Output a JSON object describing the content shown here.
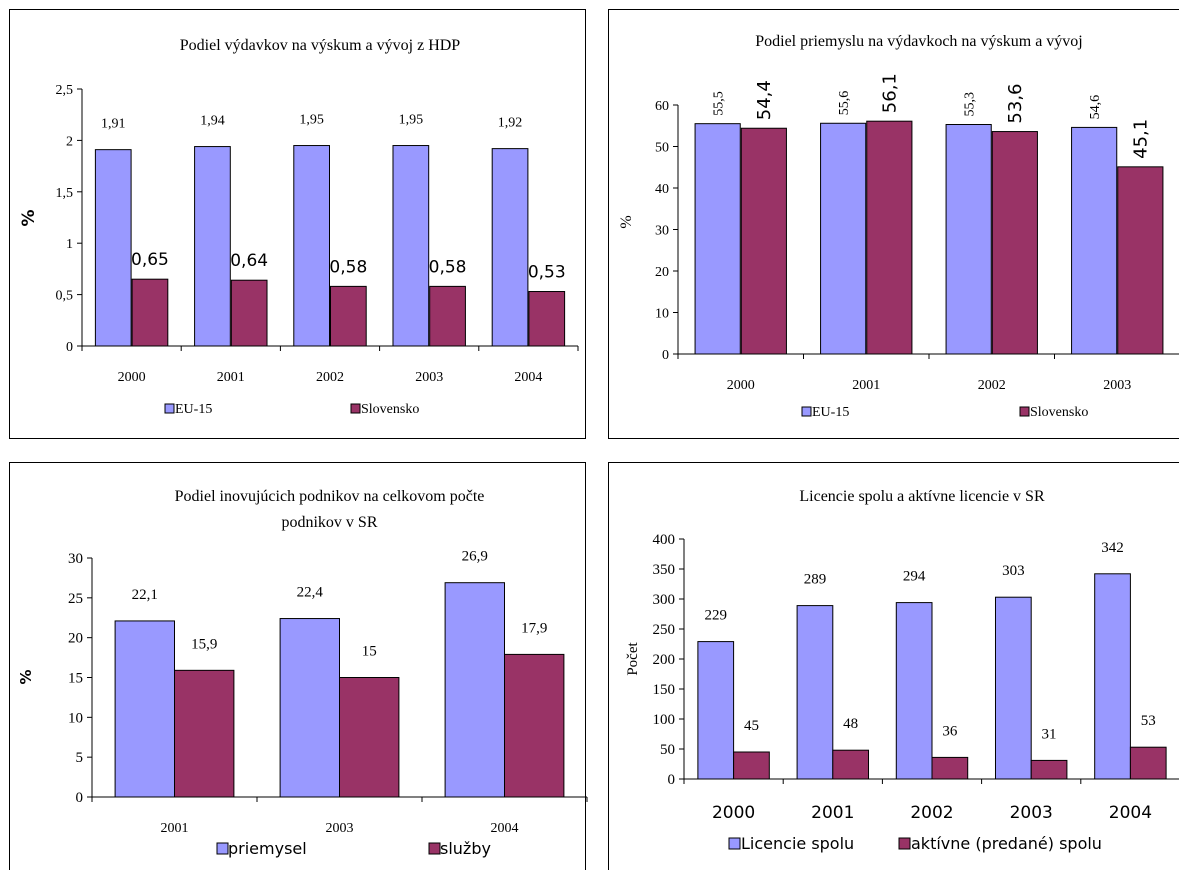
{
  "chart_data": [
    {
      "type": "bar",
      "title": "Podiel výdavkov na výskum a vývoj z HDP",
      "xlabel": "",
      "ylabel": "%",
      "ylim": [
        0,
        2.5
      ],
      "yticks": [
        "0",
        "0,5",
        "1",
        "1,5",
        "2",
        "2,5"
      ],
      "categories": [
        "2000",
        "2001",
        "2002",
        "2003",
        "2004"
      ],
      "series": [
        {
          "name": "EU-15",
          "color": "#9999ff",
          "values": [
            1.91,
            1.94,
            1.95,
            1.95,
            1.92
          ],
          "labels": [
            "1,91",
            "1,94",
            "1,95",
            "1,95",
            "1,92"
          ]
        },
        {
          "name": "Slovensko",
          "color": "#993366",
          "values": [
            0.65,
            0.64,
            0.58,
            0.58,
            0.53
          ],
          "labels": [
            "0,65",
            "0,64",
            "0,58",
            "0,58",
            "0,53"
          ]
        }
      ],
      "grid": false,
      "legend": "bottom"
    },
    {
      "type": "bar",
      "title": "Podiel priemyslu na výdavkoch na výskum a vývoj",
      "xlabel": "",
      "ylabel": "%",
      "ylim": [
        0,
        60
      ],
      "yticks": [
        "0",
        "10",
        "20",
        "30",
        "40",
        "50",
        "60"
      ],
      "categories": [
        "2000",
        "2001",
        "2002",
        "2003"
      ],
      "series": [
        {
          "name": "EU-15",
          "color": "#9999ff",
          "values": [
            55.5,
            55.6,
            55.3,
            54.6
          ],
          "labels": [
            "55,5",
            "55,6",
            "55,3",
            "54,6"
          ]
        },
        {
          "name": "Slovensko",
          "color": "#993366",
          "values": [
            54.4,
            56.1,
            53.6,
            45.1
          ],
          "labels": [
            "54,4",
            "56,1",
            "53,6",
            "45,1"
          ]
        }
      ],
      "grid": false,
      "legend": "bottom"
    },
    {
      "type": "bar",
      "title": "Podiel inovujúcich podnikov na celkovom počte podnikov v SR",
      "title_lines": [
        "Podiel inovujúcich podnikov na celkovom počte",
        "podnikov v SR"
      ],
      "xlabel": "",
      "ylabel": "%",
      "ylim": [
        0,
        30
      ],
      "yticks": [
        "0",
        "5",
        "10",
        "15",
        "20",
        "25",
        "30"
      ],
      "categories": [
        "2001",
        "2003",
        "2004"
      ],
      "series": [
        {
          "name": "priemysel",
          "color": "#9999ff",
          "values": [
            22.1,
            22.4,
            26.9
          ],
          "labels": [
            "22,1",
            "22,4",
            "26,9"
          ]
        },
        {
          "name": "služby",
          "color": "#993366",
          "values": [
            15.9,
            15,
            17.9
          ],
          "labels": [
            "15,9",
            "15",
            "17,9"
          ]
        }
      ],
      "grid": false,
      "legend": "bottom"
    },
    {
      "type": "bar",
      "title": "Licencie spolu a aktívne licencie v SR",
      "xlabel": "",
      "ylabel": "Počet",
      "ylim": [
        0,
        400
      ],
      "yticks": [
        "0",
        "50",
        "100",
        "150",
        "200",
        "250",
        "300",
        "350",
        "400"
      ],
      "categories": [
        "2000",
        "2001",
        "2002",
        "2003",
        "2004"
      ],
      "series": [
        {
          "name": "Licencie spolu",
          "color": "#9999ff",
          "values": [
            229,
            289,
            294,
            303,
            342
          ],
          "labels": [
            "229",
            "289",
            "294",
            "303",
            "342"
          ]
        },
        {
          "name": "aktívne (predané) spolu",
          "color": "#993366",
          "values": [
            45,
            48,
            36,
            31,
            53
          ],
          "labels": [
            "45",
            "48",
            "36",
            "31",
            "53"
          ]
        }
      ],
      "grid": false,
      "legend": "bottom"
    }
  ]
}
